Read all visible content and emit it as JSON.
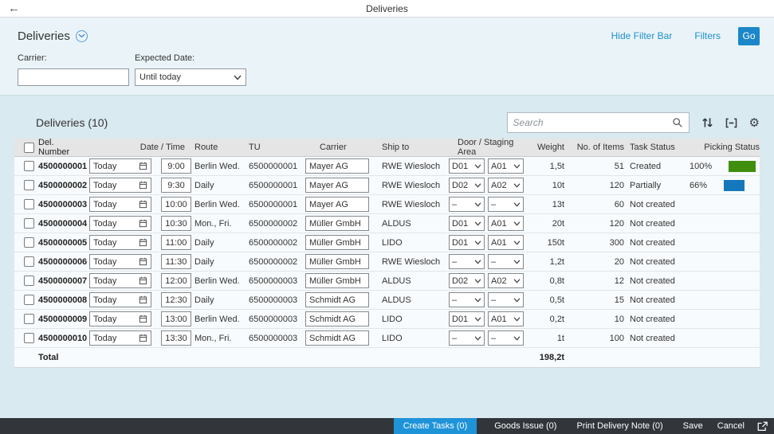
{
  "shell": {
    "title": "Deliveries"
  },
  "filter_bar": {
    "title": "Deliveries",
    "hide_filter_bar_label": "Hide Filter Bar",
    "filters_label": "Filters",
    "go_label": "Go",
    "carrier_label": "Carrier:",
    "carrier_value": "",
    "expected_date_label": "Expected Date:",
    "expected_date_value": "Until today"
  },
  "table": {
    "title": "Deliveries (10)",
    "search_placeholder": "Search",
    "columns": [
      "Del. Number",
      "Date / Time",
      "Route",
      "TU",
      "Carrier",
      "Ship to",
      "Door / Staging Area",
      "Weight",
      "No. of Items",
      "Task Status",
      "Picking Status"
    ],
    "rows": [
      {
        "del_number": "4500000001",
        "date": "Today",
        "time": "9:00",
        "route": "Berlin Wed.",
        "tu": "6500000001",
        "carrier": "Mayer AG",
        "ship_to": "RWE Wiesloch",
        "door": "D01",
        "staging": "A01",
        "weight": "1,5t",
        "items": "51",
        "task_status": "Created",
        "picking_pct": "100%",
        "picking_value": 100,
        "picking_color": "#3f8e0e"
      },
      {
        "del_number": "4500000002",
        "date": "Today",
        "time": "9:30",
        "route": "Daily",
        "tu": "6500000001",
        "carrier": "Mayer AG",
        "ship_to": "RWE Wiesloch",
        "door": "D02",
        "staging": "A02",
        "weight": "10t",
        "items": "120",
        "task_status": "Partially",
        "picking_pct": "66%",
        "picking_value": 66,
        "picking_color": "#1577bc"
      },
      {
        "del_number": "4500000003",
        "date": "Today",
        "time": "10:00",
        "route": "Berlin Wed.",
        "tu": "6500000001",
        "carrier": "Mayer AG",
        "ship_to": "RWE Wiesloch",
        "door": "–",
        "staging": "–",
        "weight": "13t",
        "items": "60",
        "task_status": "Not created",
        "picking_pct": "",
        "picking_value": null,
        "picking_color": null
      },
      {
        "del_number": "4500000004",
        "date": "Today",
        "time": "10:30",
        "route": "Mon., Fri.",
        "tu": "6500000002",
        "carrier": "Müller GmbH",
        "ship_to": "ALDUS",
        "door": "D01",
        "staging": "A01",
        "weight": "20t",
        "items": "120",
        "task_status": "Not created",
        "picking_pct": "",
        "picking_value": null,
        "picking_color": null
      },
      {
        "del_number": "4500000005",
        "date": "Today",
        "time": "11:00",
        "route": "Daily",
        "tu": "6500000002",
        "carrier": "Müller GmbH",
        "ship_to": "LIDO",
        "door": "D01",
        "staging": "A01",
        "weight": "150t",
        "items": "300",
        "task_status": "Not created",
        "picking_pct": "",
        "picking_value": null,
        "picking_color": null
      },
      {
        "del_number": "4500000006",
        "date": "Today",
        "time": "11:30",
        "route": "Daily",
        "tu": "6500000002",
        "carrier": "Müller GmbH",
        "ship_to": "RWE Wiesloch",
        "door": "–",
        "staging": "–",
        "weight": "1,2t",
        "items": "20",
        "task_status": "Not created",
        "picking_pct": "",
        "picking_value": null,
        "picking_color": null
      },
      {
        "del_number": "4500000007",
        "date": "Today",
        "time": "12:00",
        "route": "Berlin Wed.",
        "tu": "6500000003",
        "carrier": "Müller GmbH",
        "ship_to": "ALDUS",
        "door": "D02",
        "staging": "A02",
        "weight": "0,8t",
        "items": "12",
        "task_status": "Not created",
        "picking_pct": "",
        "picking_value": null,
        "picking_color": null
      },
      {
        "del_number": "4500000008",
        "date": "Today",
        "time": "12:30",
        "route": "Daily",
        "tu": "6500000003",
        "carrier": "Schmidt AG",
        "ship_to": "ALDUS",
        "door": "–",
        "staging": "–",
        "weight": "0,5t",
        "items": "15",
        "task_status": "Not created",
        "picking_pct": "",
        "picking_value": null,
        "picking_color": null
      },
      {
        "del_number": "4500000009",
        "date": "Today",
        "time": "13:00",
        "route": "Berlin Wed.",
        "tu": "6500000003",
        "carrier": "Schmidt AG",
        "ship_to": "LIDO",
        "door": "D01",
        "staging": "A01",
        "weight": "0,2t",
        "items": "10",
        "task_status": "Not created",
        "picking_pct": "",
        "picking_value": null,
        "picking_color": null
      },
      {
        "del_number": "4500000010",
        "date": "Today",
        "time": "13:30",
        "route": "Mon., Fri.",
        "tu": "6500000003",
        "carrier": "Schmidt AG",
        "ship_to": "LIDO",
        "door": "–",
        "staging": "–",
        "weight": "1t",
        "items": "100",
        "task_status": "Not created",
        "picking_pct": "",
        "picking_value": null,
        "picking_color": null
      }
    ],
    "total_label": "Total",
    "total_weight": "198,2t"
  },
  "footer": {
    "create_tasks_label": "Create Tasks (0)",
    "goods_issue_label": "Goods Issue (0)",
    "print_delivery_note_label": "Print Delivery Note (0)",
    "save_label": "Save",
    "cancel_label": "Cancel"
  },
  "icons": {
    "back": "←",
    "settings_gear": "⚙"
  },
  "colors": {
    "accent_blue": "#1b87c9",
    "link_blue": "#1f8fd0",
    "picking_done_green": "#3f8e0e",
    "picking_partial_blue": "#1577bc",
    "footer_bg": "#32363b",
    "footer_button_blue": "#1e93d8"
  }
}
